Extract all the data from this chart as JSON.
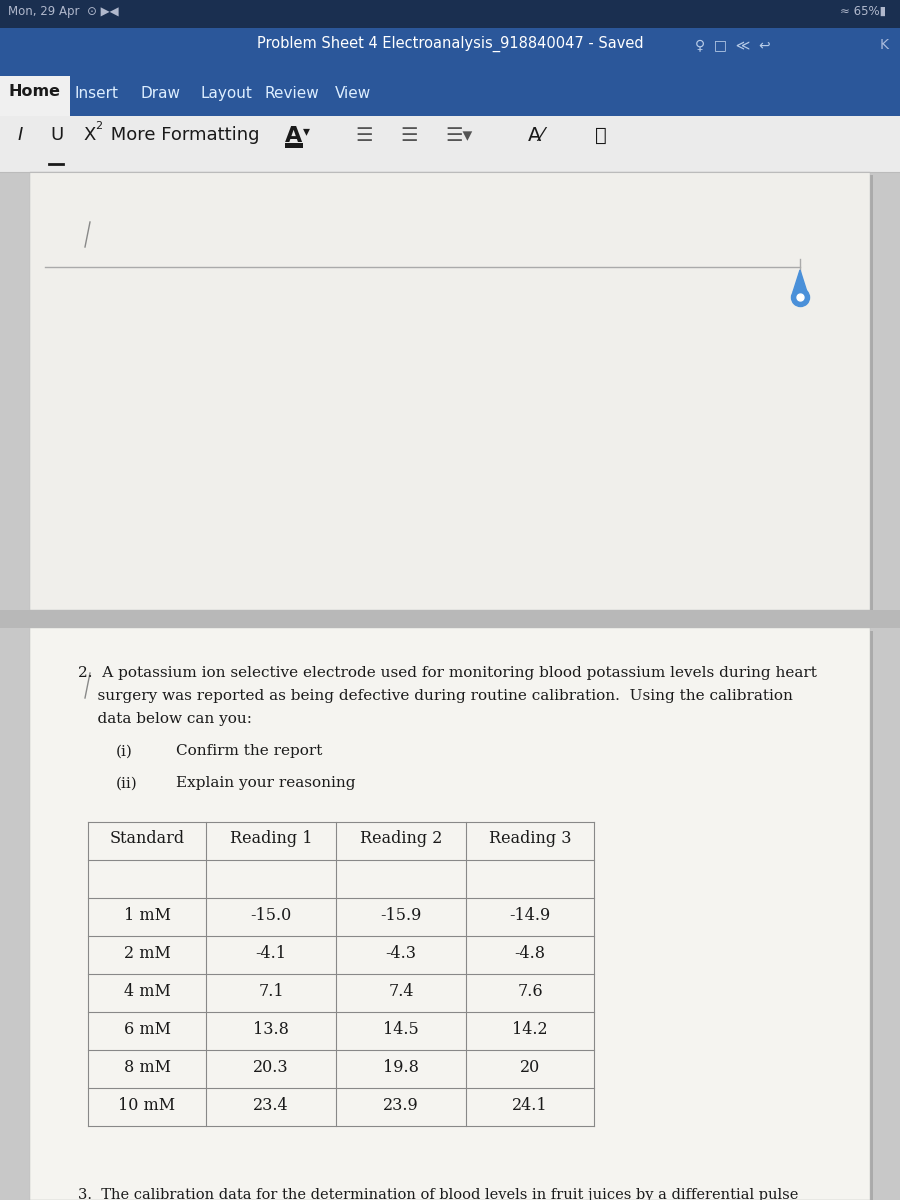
{
  "title_bar_color": "#2b579a",
  "title_bar_text": "Problem Sheet 4 Electroanalysis_918840047 - Saved",
  "top_bar_color": "#1a2f50",
  "battery_pct": "65%",
  "nav_tabs": [
    "Home",
    "Insert",
    "Draw",
    "Layout",
    "Review",
    "View"
  ],
  "active_tab": "Home",
  "doc_bg_color": "#c8c8c8",
  "page_bg_color": "#f0efeb",
  "text_color": "#1a1a1a",
  "table_border_color": "#888888",
  "toolbar_bg": "#ebebeb",
  "ruler_line_color": "#999999",
  "scroll_handle_color": "#4a90d9",
  "page_divider_color": "#aaaaaa",
  "table_headers": [
    "Standard",
    "Reading 1",
    "Reading 2",
    "Reading 3"
  ],
  "table_rows": [
    [
      "1 mM",
      "-15.0",
      "-15.9",
      "-14.9"
    ],
    [
      "2 mM",
      "-4.1",
      "-4.3",
      "-4.8"
    ],
    [
      "4 mM",
      "7.1",
      "7.4",
      "7.6"
    ],
    [
      "6 mM",
      "13.8",
      "14.5",
      "14.2"
    ],
    [
      "8 mM",
      "20.3",
      "19.8",
      "20"
    ],
    [
      "10 mM",
      "23.4",
      "23.9",
      "24.1"
    ]
  ],
  "line1": "2.  A potassium ion selective electrode used for monitoring blood potassium levels during heart",
  "line2": "    surgery was reported as being defective during routine calibration.  Using the calibration",
  "line3": "    data below can you:",
  "item_i_label": "(i)",
  "item_i_text": "Confirm the report",
  "item_ii_label": "(ii)",
  "item_ii_text": "Explain your reasoning",
  "footer_partial": "fruit juices by a differential pulse"
}
